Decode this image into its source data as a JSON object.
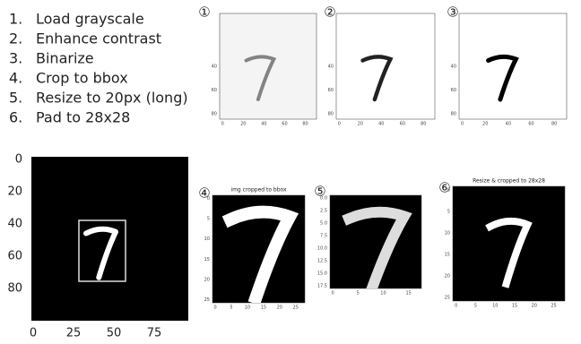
{
  "steps": [
    {
      "number": "1.",
      "text": "Load grayscale"
    },
    {
      "number": "2.",
      "text": "Enhance contrast"
    },
    {
      "number": "3.",
      "text": "Binarize"
    },
    {
      "number": "4.",
      "text": "Crop to bbox"
    },
    {
      "number": "5.",
      "text": "Resize to 20px (long)"
    },
    {
      "number": "6.",
      "text": "Pad to 28x28"
    }
  ],
  "bbox_panel": {
    "xticks": [
      "0",
      "25",
      "50",
      "75"
    ],
    "yticks": [
      "0",
      "20",
      "40",
      "60",
      "80"
    ]
  },
  "panels": [
    {
      "badge": "①",
      "xticks": [
        "0",
        "20",
        "40",
        "60",
        "80"
      ],
      "yticks": [
        "40",
        "60",
        "80"
      ]
    },
    {
      "badge": "②",
      "xticks": [
        "0",
        "20",
        "40",
        "60",
        "80"
      ],
      "yticks": [
        "40",
        "60",
        "80"
      ]
    },
    {
      "badge": "③",
      "xticks": [
        "0",
        "20",
        "40",
        "60",
        "80"
      ],
      "yticks": [
        "40",
        "60",
        "80"
      ]
    },
    {
      "badge": "④",
      "title": "img cropped to bbox",
      "xticks": [
        "0",
        "5",
        "10",
        "15",
        "20",
        "25"
      ],
      "yticks": [
        "0",
        "5",
        "10",
        "15",
        "20",
        "25"
      ]
    },
    {
      "badge": "⑤",
      "xticks": [
        "0",
        "5",
        "10",
        "15"
      ],
      "yticks": [
        "0.0",
        "2.5",
        "5.0",
        "7.5",
        "10.0",
        "12.5",
        "15.0",
        "17.5"
      ]
    },
    {
      "badge": "⑥",
      "title": "Resize & cropped to 28x28",
      "xticks": [
        "0",
        "5",
        "10",
        "15",
        "20",
        "25"
      ],
      "yticks": [
        "0",
        "5",
        "10",
        "15",
        "20",
        "25"
      ]
    }
  ]
}
